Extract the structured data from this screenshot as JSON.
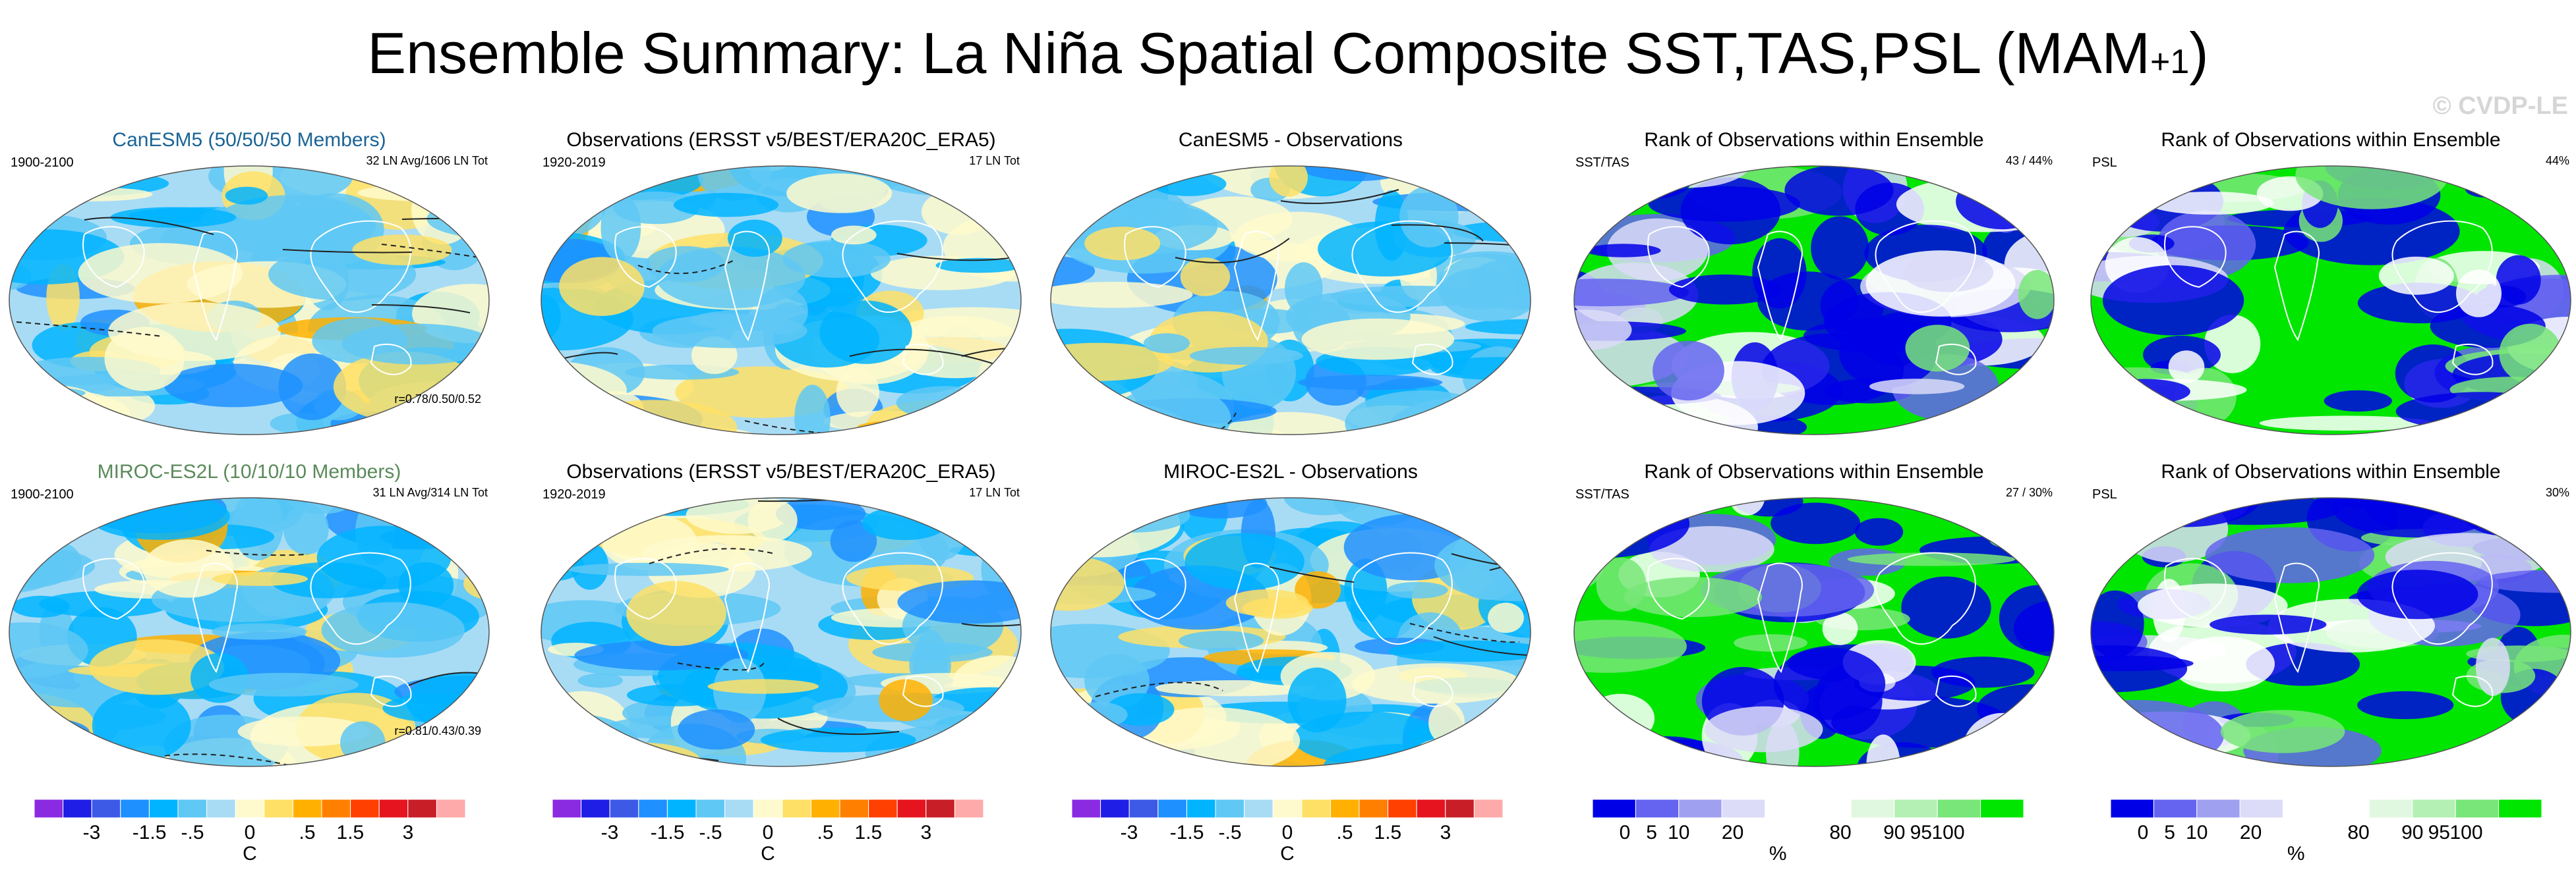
{
  "title_main": "Ensemble Summary: La Niña Spatial Composite SST,TAS,PSL (MAM",
  "title_sup": "+1",
  "title_end": ")",
  "watermark": "© CVDP-LE",
  "panels": {
    "r1c1": {
      "title": "CanESM5 (50/50/50 Members)",
      "left": "1900-2100",
      "right": "32 LN Avg/1606 LN Tot",
      "bottom": "r=0.78/0.50/0.52",
      "title_color": "#1a6496"
    },
    "r1c2": {
      "title": "Observations (ERSST v5/BEST/ERA20C_ERA5)",
      "left": "1920-2019",
      "right": "17 LN Tot"
    },
    "r1c3": {
      "title": "CanESM5 - Observations"
    },
    "r1c4": {
      "title": "Rank of Observations within Ensemble",
      "left": "SST/TAS",
      "right": "43 /  44%"
    },
    "r1c5": {
      "title": "Rank of Observations within Ensemble",
      "left": "PSL",
      "right": "44%"
    },
    "r2c1": {
      "title": "MIROC-ES2L (10/10/10 Members)",
      "left": "1900-2100",
      "right": "31 LN Avg/314 LN Tot",
      "bottom": "r=0.81/0.43/0.39",
      "title_color": "#5a8a5a"
    },
    "r2c2": {
      "title": "Observations (ERSST v5/BEST/ERA20C_ERA5)",
      "left": "1920-2019",
      "right": "17 LN Tot"
    },
    "r2c3": {
      "title": "MIROC-ES2L - Observations"
    },
    "r2c4": {
      "title": "Rank of Observations within Ensemble",
      "left": "SST/TAS",
      "right": "27 /  30%"
    },
    "r2c5": {
      "title": "Rank of Observations within Ensemble",
      "left": "PSL",
      "right": "30%"
    }
  },
  "temp_colorbar": {
    "colors": [
      "#8a2be2",
      "#1e1ee6",
      "#3c5ae6",
      "#1e90ff",
      "#00b4ff",
      "#5fc8f5",
      "#a8dcf5",
      "#fffacd",
      "#ffe066",
      "#ffb000",
      "#ff8000",
      "#ff4000",
      "#e6141e",
      "#c81e28",
      "#ffaaaa"
    ],
    "ticks": [
      "-3",
      "-1.5",
      "-.5",
      "0",
      ".5",
      "1.5",
      "3"
    ],
    "unit": "C"
  },
  "rank_colorbar": {
    "colors": [
      "#0000e6",
      "#6464f0",
      "#a0a0f0",
      "#dcdcf8",
      "#ffffff",
      "#ffffff",
      "#e0f8e0",
      "#b4f0b4",
      "#78e678",
      "#00e600"
    ],
    "ticks": [
      "0",
      "5",
      "10",
      "20",
      "80",
      "90",
      "95",
      "100"
    ],
    "unit": "%"
  }
}
